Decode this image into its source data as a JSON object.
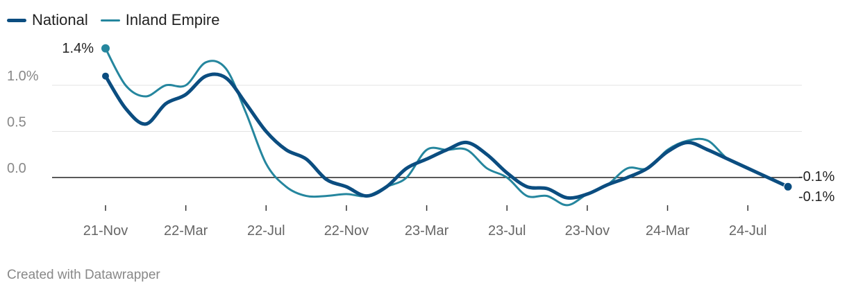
{
  "chart_data": {
    "type": "line",
    "title": "",
    "xlabel": "",
    "ylabel": "",
    "ylim": [
      -0.3,
      1.45
    ],
    "y_ticks": [
      {
        "value": 1.0,
        "label": "1.0%"
      },
      {
        "value": 0.5,
        "label": "0.5"
      },
      {
        "value": 0.0,
        "label": "0.0"
      }
    ],
    "x_ticks": [
      {
        "index": 0,
        "label": "21-Nov"
      },
      {
        "index": 4,
        "label": "22-Mar"
      },
      {
        "index": 8,
        "label": "22-Jul"
      },
      {
        "index": 12,
        "label": "22-Nov"
      },
      {
        "index": 16,
        "label": "23-Mar"
      },
      {
        "index": 20,
        "label": "23-Jul"
      },
      {
        "index": 24,
        "label": "23-Nov"
      },
      {
        "index": 28,
        "label": "24-Mar"
      },
      {
        "index": 32,
        "label": "24-Jul"
      }
    ],
    "x_range": [
      0,
      35
    ],
    "legend_position": "top-left",
    "series": [
      {
        "name": "National",
        "color": "#0b4d80",
        "values": [
          1.1,
          0.75,
          0.58,
          0.8,
          0.9,
          1.1,
          1.08,
          0.8,
          0.5,
          0.3,
          0.2,
          -0.02,
          -0.1,
          -0.2,
          -0.1,
          0.1,
          0.2,
          0.3,
          0.38,
          0.25,
          0.05,
          -0.1,
          -0.12,
          -0.22,
          -0.18,
          -0.08,
          0.0,
          0.1,
          0.28,
          0.38,
          0.3,
          0.2,
          0.1,
          0.0,
          -0.1
        ],
        "end_label": "-0.1%"
      },
      {
        "name": "Inland Empire",
        "color": "#25869e",
        "values": [
          1.4,
          1.0,
          0.88,
          1.0,
          1.0,
          1.25,
          1.18,
          0.7,
          0.15,
          -0.1,
          -0.2,
          -0.2,
          -0.18,
          -0.2,
          -0.1,
          0.0,
          0.3,
          0.3,
          0.3,
          0.1,
          0.0,
          -0.2,
          -0.2,
          -0.3,
          -0.18,
          -0.08,
          0.1,
          0.1,
          0.3,
          0.4,
          0.4,
          0.2,
          0.1,
          0.0,
          -0.1
        ],
        "start_label": "1.4%",
        "end_label": "-0.1%"
      }
    ]
  },
  "credit": "Created with Datawrapper"
}
